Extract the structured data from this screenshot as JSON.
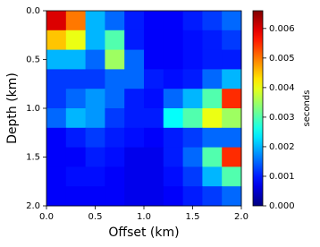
{
  "chart_data": {
    "type": "heatmap",
    "colormap": "jet",
    "xlabel": "Offset (km)",
    "ylabel": "Depth (km)",
    "colorbar_label": "seconds",
    "xlim": [
      0.0,
      2.0
    ],
    "ylim": [
      2.0,
      0.0
    ],
    "zlim": [
      0,
      0.0066
    ],
    "xticks": [
      {
        "value": 0,
        "label": "0.0"
      },
      {
        "value": 0.5,
        "label": "0.5"
      },
      {
        "value": 1,
        "label": "1.0"
      },
      {
        "value": 1.5,
        "label": "1.5"
      },
      {
        "value": 2,
        "label": "2.0"
      }
    ],
    "yticks": [
      {
        "value": 0,
        "label": "0.0"
      },
      {
        "value": 0.5,
        "label": "0.5"
      },
      {
        "value": 1,
        "label": "1.0"
      },
      {
        "value": 1.5,
        "label": "1.5"
      },
      {
        "value": 2,
        "label": "2.0"
      }
    ],
    "zticks": [
      {
        "value": 0,
        "label": "0.000"
      },
      {
        "value": 0.001,
        "label": "0.001"
      },
      {
        "value": 0.002,
        "label": "0.002"
      },
      {
        "value": 0.003,
        "label": "0.003"
      },
      {
        "value": 0.004,
        "label": "0.004"
      },
      {
        "value": 0.005,
        "label": "0.005"
      },
      {
        "value": 0.006,
        "label": "0.006"
      }
    ],
    "z": [
      [
        0.006,
        0.005,
        0.002,
        0.0015,
        0.001,
        0.0008,
        0.0008,
        0.001,
        0.0012,
        0.0015
      ],
      [
        0.0045,
        0.004,
        0.002,
        0.003,
        0.001,
        0.0008,
        0.0008,
        0.0009,
        0.001,
        0.0012
      ],
      [
        0.002,
        0.002,
        0.0015,
        0.0035,
        0.0015,
        0.0008,
        0.0008,
        0.0009,
        0.001,
        0.001
      ],
      [
        0.0012,
        0.0012,
        0.0012,
        0.0015,
        0.0015,
        0.001,
        0.0009,
        0.001,
        0.0015,
        0.002
      ],
      [
        0.0012,
        0.0015,
        0.0018,
        0.0015,
        0.001,
        0.0009,
        0.0015,
        0.002,
        0.003,
        0.0055
      ],
      [
        0.0015,
        0.002,
        0.0018,
        0.0012,
        0.001,
        0.001,
        0.0025,
        0.003,
        0.004,
        0.0035
      ],
      [
        0.0008,
        0.001,
        0.0012,
        0.001,
        0.0009,
        0.0008,
        0.001,
        0.0012,
        0.0015,
        0.0015
      ],
      [
        0.0008,
        0.0008,
        0.001,
        0.0009,
        0.0007,
        0.0007,
        0.001,
        0.0015,
        0.003,
        0.0055
      ],
      [
        0.0008,
        0.0009,
        0.0009,
        0.0008,
        0.0007,
        0.0007,
        0.0009,
        0.0012,
        0.002,
        0.003
      ],
      [
        0.0008,
        0.0008,
        0.0008,
        0.0008,
        0.0007,
        0.0007,
        0.0008,
        0.001,
        0.0012,
        0.0015
      ]
    ]
  }
}
